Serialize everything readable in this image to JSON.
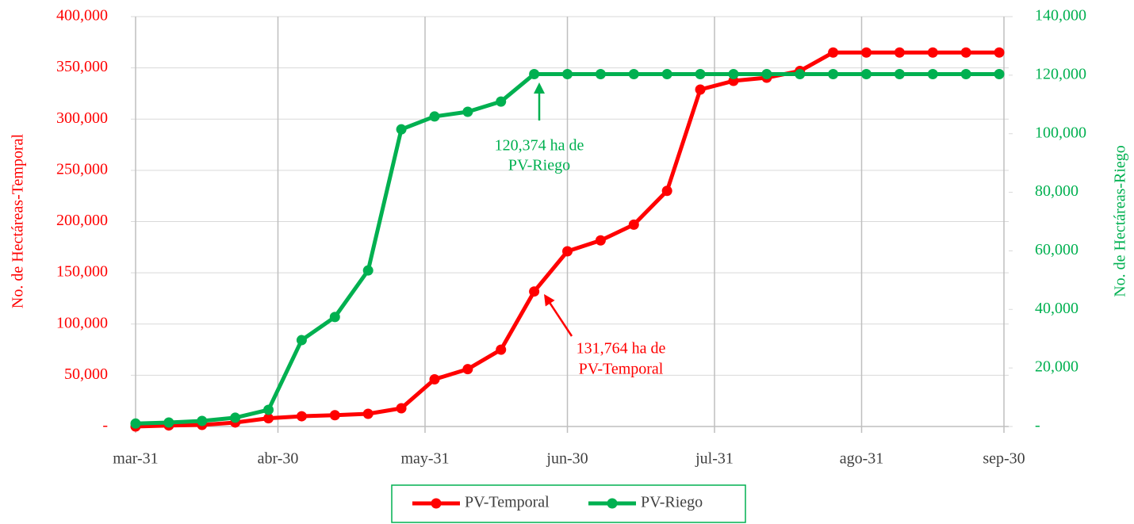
{
  "chart_data": {
    "type": "line",
    "x": [
      90,
      97,
      104,
      111,
      118,
      125,
      132,
      139,
      146,
      153,
      160,
      167,
      174,
      181,
      188,
      195,
      202,
      209,
      216,
      223,
      230,
      237,
      244,
      251,
      258,
      265,
      272
    ],
    "xlim": [
      89,
      274
    ],
    "xticks": [
      {
        "value": 90,
        "label": "mar-31"
      },
      {
        "value": 120,
        "label": "abr-30"
      },
      {
        "value": 151,
        "label": "may-31"
      },
      {
        "value": 181,
        "label": "jun-30"
      },
      {
        "value": 212,
        "label": "jul-31"
      },
      {
        "value": 243,
        "label": "ago-31"
      },
      {
        "value": 273,
        "label": "sep-30"
      }
    ],
    "ylabel": "No. de Hectáreas-Temporal",
    "y2label": "No. de Hectáreas-Riego",
    "ylim": [
      0,
      400000
    ],
    "yticks": [
      {
        "value": 0,
        "label": "-"
      },
      {
        "value": 50000,
        "label": "50,000"
      },
      {
        "value": 100000,
        "label": "100,000"
      },
      {
        "value": 150000,
        "label": "150,000"
      },
      {
        "value": 200000,
        "label": "200,000"
      },
      {
        "value": 250000,
        "label": "250,000"
      },
      {
        "value": 300000,
        "label": "300,000"
      },
      {
        "value": 350000,
        "label": "350,000"
      },
      {
        "value": 400000,
        "label": "400,000"
      }
    ],
    "y2lim": [
      0,
      140000
    ],
    "y2ticks": [
      {
        "value": 0,
        "label": "-"
      },
      {
        "value": 20000,
        "label": "20,000"
      },
      {
        "value": 40000,
        "label": "40,000"
      },
      {
        "value": 60000,
        "label": "60,000"
      },
      {
        "value": 80000,
        "label": "80,000"
      },
      {
        "value": 100000,
        "label": "100,000"
      },
      {
        "value": 120000,
        "label": "120,000"
      },
      {
        "value": 140000,
        "label": "140,000"
      }
    ],
    "grid": true,
    "legend": "bottom",
    "series": [
      {
        "name": "PV-Temporal",
        "color": "#ff0000",
        "axis": "y",
        "values": [
          0,
          1000,
          1500,
          3900,
          8000,
          10000,
          11000,
          12400,
          17800,
          46000,
          56000,
          75000,
          131764,
          171000,
          181600,
          197000,
          230000,
          328800,
          337300,
          340400,
          347000,
          365000,
          365000,
          365000,
          365000,
          365000,
          365000
        ]
      },
      {
        "name": "PV-Riego",
        "color": "#00b050",
        "axis": "y2",
        "values": [
          1000,
          1350,
          1900,
          3000,
          5700,
          29500,
          37400,
          53300,
          101500,
          105900,
          107500,
          111000,
          120374,
          120374,
          120374,
          120374,
          120374,
          120374,
          120374,
          120374,
          120374,
          120374,
          120374,
          120374,
          120374,
          120374,
          120374
        ]
      }
    ],
    "annotations": [
      {
        "lines": [
          "120,374 ha de",
          "PV-Riego"
        ],
        "color": "#00b050"
      },
      {
        "lines": [
          "131,764 ha de",
          "PV-Temporal"
        ],
        "color": "#ff0000"
      }
    ]
  }
}
